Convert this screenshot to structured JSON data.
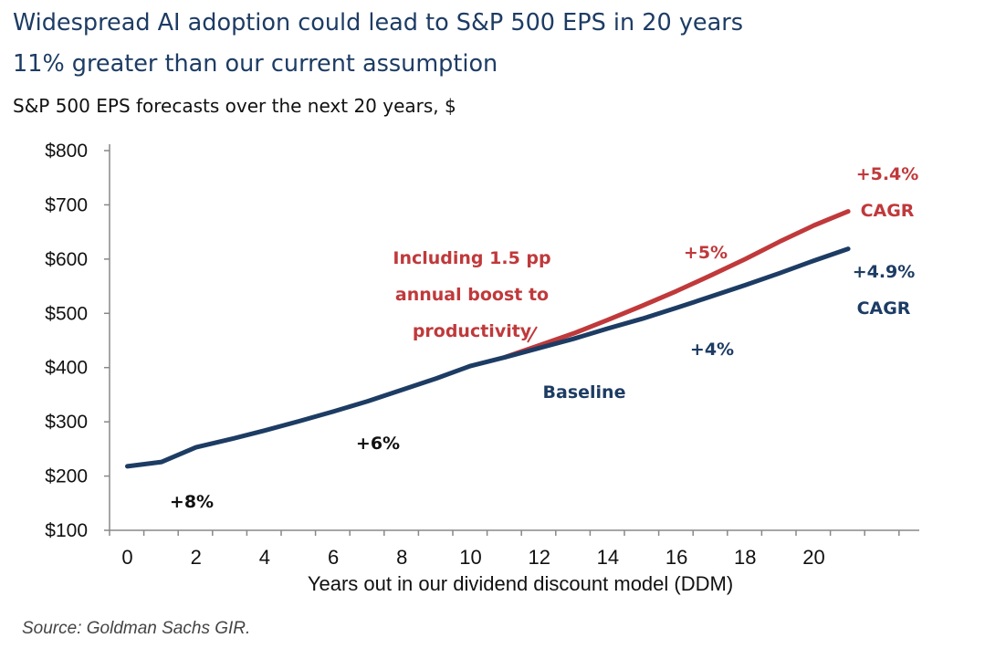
{
  "title_line1": "Widespread AI adoption could lead to S&P 500 EPS in 20 years",
  "title_line2": "11% greater than our current assumption",
  "subtitle": "S&P 500 EPS forecasts over the next 20 years, $",
  "source": "Source: Goldman Sachs GIR.",
  "colors": {
    "baseline": "#1d3c64",
    "ai": "#c0393b",
    "axis": "#888888"
  },
  "chart_data": {
    "type": "line",
    "xlabel": "Years out in our dividend discount model (DDM)",
    "ylabel": "",
    "ylim": [
      100,
      800
    ],
    "yticks": [
      "$100",
      "$200",
      "$300",
      "$400",
      "$500",
      "$600",
      "$700",
      "$800"
    ],
    "yticks_values": [
      100,
      200,
      300,
      400,
      500,
      600,
      700,
      800
    ],
    "xticks": [
      "0",
      "2",
      "4",
      "6",
      "8",
      "10",
      "12",
      "14",
      "16",
      "18",
      "20"
    ],
    "xticks_values": [
      0,
      2,
      4,
      6,
      8,
      10,
      12,
      14,
      16,
      18,
      20
    ],
    "grid": false,
    "series": [
      {
        "name": "Baseline",
        "x": [
          0,
          1,
          2,
          3,
          4,
          5,
          6,
          7,
          8,
          9,
          10,
          11,
          12,
          13,
          14,
          15,
          16,
          17,
          18,
          19,
          20,
          21
        ],
        "values": [
          218,
          226,
          253,
          268,
          284,
          301,
          319,
          338,
          359,
          380,
          403,
          419,
          436,
          453,
          472,
          490,
          510,
          531,
          552,
          574,
          597,
          619
        ]
      },
      {
        "name": "Including 1.5 pp annual boost to productivity",
        "x": [
          11,
          12,
          13,
          14,
          15,
          16,
          17,
          18,
          19,
          20,
          21
        ],
        "values": [
          419,
          441,
          463,
          488,
          514,
          541,
          570,
          600,
          632,
          662,
          688
        ]
      }
    ],
    "annotations": {
      "ai_label": [
        "Including 1.5 pp",
        "annual boost to",
        "productivity"
      ],
      "baseline_label": "Baseline",
      "g8": "+8%",
      "g6": "+6%",
      "g4": "+4%",
      "g5": "+5%",
      "ai_cagr": [
        "+5.4%",
        "CAGR"
      ],
      "base_cagr": [
        "+4.9%",
        "CAGR"
      ]
    }
  }
}
